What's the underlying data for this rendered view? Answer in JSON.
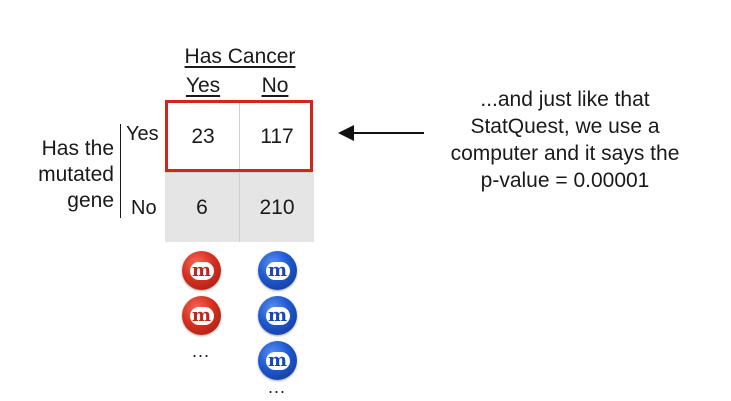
{
  "table": {
    "column_header": "Has Cancer",
    "columns": [
      "Yes",
      "No"
    ],
    "row_header": [
      "Has the",
      "mutated",
      "gene"
    ],
    "rows": [
      "Yes",
      "No"
    ],
    "cells": [
      [
        "23",
        "117"
      ],
      [
        "6",
        "210"
      ]
    ],
    "highlight_color": "#d0261c"
  },
  "note": [
    "...and just like that",
    "StatQuest, we use a",
    "computer and it says the",
    "p-value = 0.00001"
  ],
  "candies": {
    "letter": "m",
    "ellipsis": "...",
    "red_color": "#d6301f",
    "blue_color": "#1e58d0"
  }
}
